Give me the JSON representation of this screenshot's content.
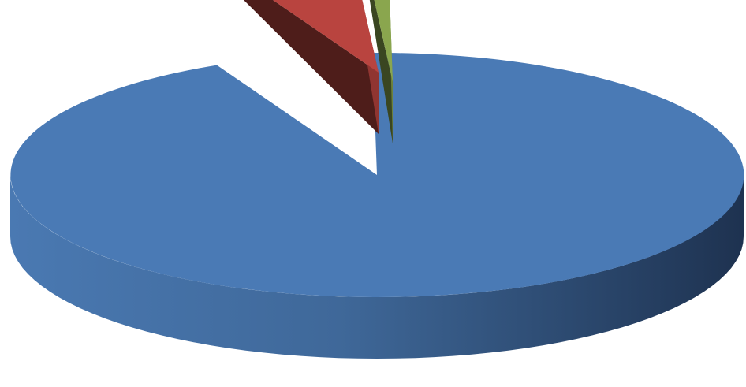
{
  "chart_data": {
    "type": "pie",
    "style": "3d-exploded",
    "title": "",
    "slices": [
      {
        "value": 93.0,
        "color": "#4A7AB5"
      },
      {
        "value": 6.0,
        "color": "#B9443F"
      },
      {
        "value": 1.0,
        "color": "#8AA64E"
      }
    ],
    "legend": "none",
    "data_labels": "none"
  }
}
